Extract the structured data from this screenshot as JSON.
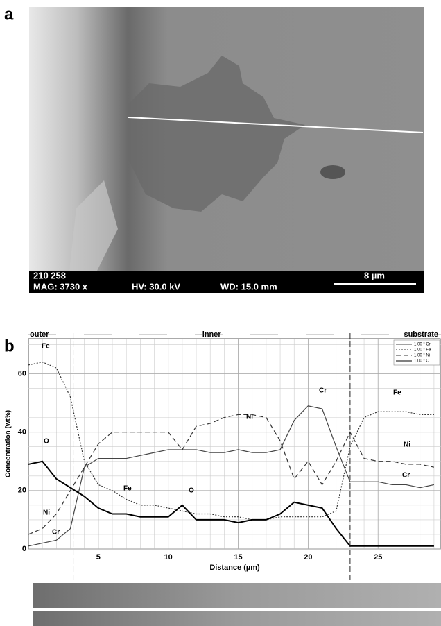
{
  "panel_a": {
    "label": "a",
    "id_text": "210 258",
    "mag": "MAG: 3730 x",
    "hv": "HV: 30.0 kV",
    "wd": "WD: 15.0 mm",
    "scale_bar": "8 µm"
  },
  "chart_data": {
    "type": "line",
    "panel_label": "b",
    "x_label": "Distance (µm)",
    "y_label": "Concentration (wt%)",
    "x": [
      0,
      1,
      2,
      3,
      4,
      5,
      6,
      7,
      8,
      9,
      10,
      11,
      12,
      13,
      14,
      15,
      16,
      17,
      18,
      19,
      20,
      21,
      22,
      23,
      24,
      25,
      26,
      27,
      28,
      29
    ],
    "series": [
      {
        "name": "1.00 * Cr",
        "color": "#444444",
        "dash": "none",
        "width": 1.2,
        "values": [
          1,
          2,
          3,
          7,
          28,
          31,
          31,
          31,
          32,
          33,
          34,
          34,
          34,
          33,
          33,
          34,
          33,
          33,
          34,
          44,
          49,
          48,
          35,
          23,
          23,
          23,
          22,
          22,
          21,
          22
        ]
      },
      {
        "name": "1.00 * Fe",
        "color": "#333333",
        "dash": "2,2",
        "width": 1.2,
        "values": [
          63,
          64,
          62,
          52,
          30,
          22,
          20,
          17,
          15,
          15,
          14,
          13,
          12,
          12,
          11,
          11,
          10,
          10,
          11,
          11,
          11,
          11,
          13,
          35,
          45,
          47,
          47,
          47,
          46,
          46
        ]
      },
      {
        "name": "1.00 * Ni",
        "color": "#333333",
        "dash": "7,4",
        "width": 1.2,
        "values": [
          5,
          7,
          12,
          20,
          28,
          36,
          40,
          40,
          40,
          40,
          40,
          34,
          42,
          43,
          45,
          46,
          46,
          45,
          37,
          24,
          30,
          22,
          30,
          40,
          31,
          30,
          30,
          29,
          29,
          28
        ]
      },
      {
        "name": "1.00 * O",
        "color": "#000000",
        "dash": "none",
        "width": 2,
        "values": [
          29,
          30,
          24,
          21,
          18,
          14,
          12,
          12,
          11,
          11,
          11,
          15,
          10,
          10,
          10,
          9,
          10,
          10,
          12,
          16,
          15,
          14,
          7,
          1,
          1,
          1,
          1,
          1,
          1,
          1
        ]
      }
    ],
    "annotations": [
      "Fe",
      "O",
      "Ni",
      "Cr",
      "Fe",
      "O",
      "Ni",
      "Cr",
      "Fe",
      "Ni",
      "Cr"
    ],
    "regions": [
      "outer",
      "inner",
      "substrate"
    ],
    "boundaries": [
      3.2,
      23
    ],
    "xlim": [
      0,
      29.5
    ],
    "ylim": [
      0,
      72
    ],
    "xticks": [
      5,
      10,
      15,
      20,
      25
    ],
    "yticks": [
      0,
      20,
      40,
      60
    ],
    "grid": true
  }
}
